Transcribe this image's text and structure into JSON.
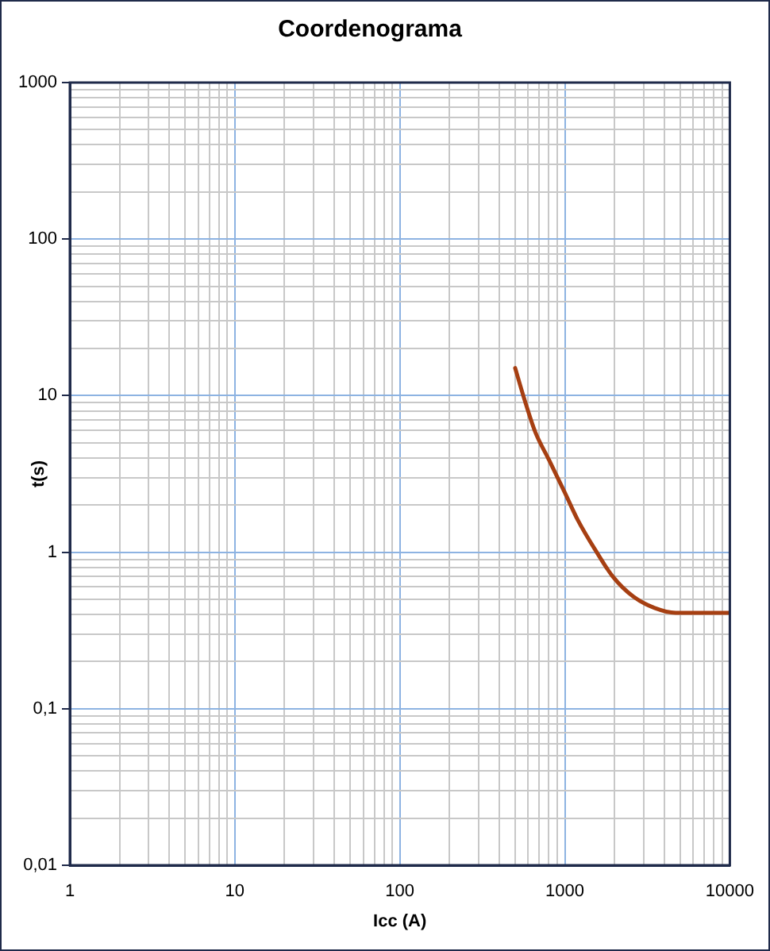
{
  "chart_data": {
    "type": "line",
    "title": "Coordenograma",
    "xlabel": "Icc (A)",
    "ylabel": "t(s)",
    "x": [
      500,
      560,
      660,
      800,
      1000,
      1200,
      1560,
      1950,
      2600,
      3500,
      4700,
      10000
    ],
    "values": [
      15,
      10,
      5.9,
      3.9,
      2.4,
      1.6,
      1.0,
      0.7,
      0.52,
      0.44,
      0.41,
      0.41
    ],
    "color": "#a63f12",
    "log": "xy",
    "grid": true,
    "xlim": [
      1,
      10000
    ],
    "ylim": [
      0.01,
      1000
    ],
    "xticks": [
      1,
      {
        "value": 2,
        "label": null
      },
      {
        "value": 3,
        "label": null
      },
      {
        "value": 4,
        "label": null
      },
      {
        "value": 5,
        "label": null
      },
      {
        "value": 6,
        "label": null
      },
      {
        "value": 7,
        "label": null
      },
      {
        "value": 8,
        "label": null
      },
      {
        "value": 9,
        "label": null
      },
      10,
      {
        "value": 20,
        "label": null
      },
      {
        "value": 30,
        "label": null
      },
      {
        "value": 40,
        "label": null
      },
      {
        "value": 50,
        "label": null
      },
      {
        "value": 60,
        "label": null
      },
      {
        "value": 70,
        "label": null
      },
      {
        "value": 80,
        "label": null
      },
      {
        "value": 90,
        "label": null
      },
      100,
      {
        "value": 200,
        "label": null
      },
      {
        "value": 300,
        "label": null
      },
      {
        "value": 400,
        "label": null
      },
      {
        "value": 500,
        "label": null
      },
      {
        "value": 600,
        "label": null
      },
      {
        "value": 700,
        "label": null
      },
      {
        "value": 800,
        "label": null
      },
      {
        "value": 900,
        "label": null
      },
      1000,
      {
        "value": 2000,
        "label": null
      },
      {
        "value": 3000,
        "label": null
      },
      {
        "value": 4000,
        "label": null
      },
      {
        "value": 5000,
        "label": null
      },
      {
        "value": 6000,
        "label": null
      },
      {
        "value": 7000,
        "label": null
      },
      {
        "value": 8000,
        "label": null
      },
      {
        "value": 9000,
        "label": null
      },
      10000
    ],
    "yticks": [
      {
        "value": 0.01,
        "label": "0,01"
      },
      {
        "value": 0.02,
        "label": null
      },
      {
        "value": 0.03,
        "label": null
      },
      {
        "value": 0.04,
        "label": null
      },
      {
        "value": 0.05,
        "label": null
      },
      {
        "value": 0.06,
        "label": null
      },
      {
        "value": 0.07,
        "label": null
      },
      {
        "value": 0.08,
        "label": null
      },
      {
        "value": 0.09,
        "label": null
      },
      {
        "value": 0.1,
        "label": "0,1"
      },
      {
        "value": 0.2,
        "label": null
      },
      {
        "value": 0.3,
        "label": null
      },
      {
        "value": 0.4,
        "label": null
      },
      {
        "value": 0.5,
        "label": null
      },
      {
        "value": 0.6,
        "label": null
      },
      {
        "value": 0.7,
        "label": null
      },
      {
        "value": 0.8,
        "label": null
      },
      {
        "value": 0.9,
        "label": null
      },
      1,
      {
        "value": 2,
        "label": null
      },
      {
        "value": 3,
        "label": null
      },
      {
        "value": 4,
        "label": null
      },
      {
        "value": 5,
        "label": null
      },
      {
        "value": 6,
        "label": null
      },
      {
        "value": 7,
        "label": null
      },
      {
        "value": 8,
        "label": null
      },
      {
        "value": 9,
        "label": null
      },
      10,
      {
        "value": 20,
        "label": null
      },
      {
        "value": 30,
        "label": null
      },
      {
        "value": 40,
        "label": null
      },
      {
        "value": 50,
        "label": null
      },
      {
        "value": 60,
        "label": null
      },
      {
        "value": 70,
        "label": null
      },
      {
        "value": 80,
        "label": null
      },
      {
        "value": 90,
        "label": null
      },
      100,
      {
        "value": 200,
        "label": null
      },
      {
        "value": 300,
        "label": null
      },
      {
        "value": 400,
        "label": null
      },
      {
        "value": 500,
        "label": null
      },
      {
        "value": 600,
        "label": null
      },
      {
        "value": 700,
        "label": null
      },
      {
        "value": 800,
        "label": null
      },
      {
        "value": 900,
        "label": null
      },
      1000
    ]
  }
}
